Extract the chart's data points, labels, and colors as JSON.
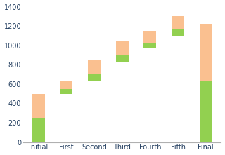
{
  "categories": [
    "Initial",
    "First",
    "Second",
    "Third",
    "Fourth",
    "Fifth",
    "Final"
  ],
  "green_values": [
    250,
    50,
    75,
    75,
    50,
    75,
    625
  ],
  "orange_values": [
    250,
    75,
    150,
    150,
    125,
    125,
    600
  ],
  "base_offsets": [
    0,
    500,
    625,
    825,
    975,
    1100,
    0
  ],
  "green_color": "#92d050",
  "orange_color": "#fac090",
  "ylim": [
    0,
    1400
  ],
  "yticks": [
    0,
    200,
    400,
    600,
    800,
    1000,
    1200,
    1400
  ],
  "background_color": "#ffffff",
  "bar_width": 0.45,
  "tick_color": "#243f60",
  "label_fontsize": 7.0,
  "tick_fontsize": 7.0,
  "spine_color": "#b0b0b0"
}
